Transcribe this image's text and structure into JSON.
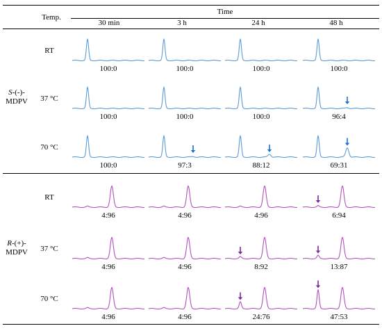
{
  "table": {
    "temp_header": "Temp.",
    "time_header": "Time",
    "time_columns": [
      "30 min",
      "3 h",
      "24 h",
      "48 h"
    ],
    "groups": [
      {
        "compound_prefix": "S",
        "compound_suffix": "-(-)-",
        "compound_line2": "MDPV",
        "color": "#5b9bd5",
        "arrow_color": "#1f6fd1",
        "rows": [
          {
            "temp": "RT",
            "ratios": [
              "100:0",
              "100:0",
              "100:0",
              "100:0"
            ]
          },
          {
            "temp": "37 °C",
            "ratios": [
              "100:0",
              "100:0",
              "100:0",
              "96:4"
            ]
          },
          {
            "temp": "70 °C",
            "ratios": [
              "100:0",
              "97:3",
              "88:12",
              "69:31"
            ]
          }
        ]
      },
      {
        "compound_prefix": "R",
        "compound_suffix": "-(+)-",
        "compound_line2": "MDPV",
        "color": "#b44fc0",
        "arrow_color": "#7b2a9e",
        "rows": [
          {
            "temp": "RT",
            "ratios": [
              "4:96",
              "4:96",
              "4:96",
              "6:94"
            ]
          },
          {
            "temp": "37 °C",
            "ratios": [
              "4:96",
              "4:96",
              "8:92",
              "13:87"
            ]
          },
          {
            "temp": "70 °C",
            "ratios": [
              "4:96",
              "4:96",
              "24:76",
              "47:53"
            ]
          }
        ]
      }
    ]
  },
  "chart_data": {
    "type": "table",
    "description_rows": "chromatogram thumbnails with enantiomer ratio (S:R) at each temperature and time",
    "columns": [
      "30 min",
      "3 h",
      "24 h",
      "48 h"
    ],
    "groups": [
      {
        "name": "S-(-)-MDPV",
        "rows": [
          {
            "temp": "RT",
            "ratio_first": [
              100,
              100,
              100,
              100
            ],
            "arrow": [
              false,
              false,
              false,
              false
            ]
          },
          {
            "temp": "37 °C",
            "ratio_first": [
              100,
              100,
              100,
              96
            ],
            "arrow": [
              false,
              false,
              false,
              true
            ]
          },
          {
            "temp": "70 °C",
            "ratio_first": [
              100,
              97,
              88,
              69
            ],
            "arrow": [
              false,
              true,
              true,
              true
            ]
          }
        ]
      },
      {
        "name": "R-(+)-MDPV",
        "rows": [
          {
            "temp": "RT",
            "ratio_first": [
              4,
              4,
              4,
              6
            ],
            "arrow": [
              false,
              false,
              false,
              true
            ]
          },
          {
            "temp": "37 °C",
            "ratio_first": [
              4,
              4,
              8,
              13
            ],
            "arrow": [
              false,
              false,
              true,
              true
            ]
          },
          {
            "temp": "70 °C",
            "ratio_first": [
              4,
              4,
              24,
              47
            ],
            "arrow": [
              false,
              false,
              true,
              true
            ]
          }
        ]
      }
    ]
  }
}
